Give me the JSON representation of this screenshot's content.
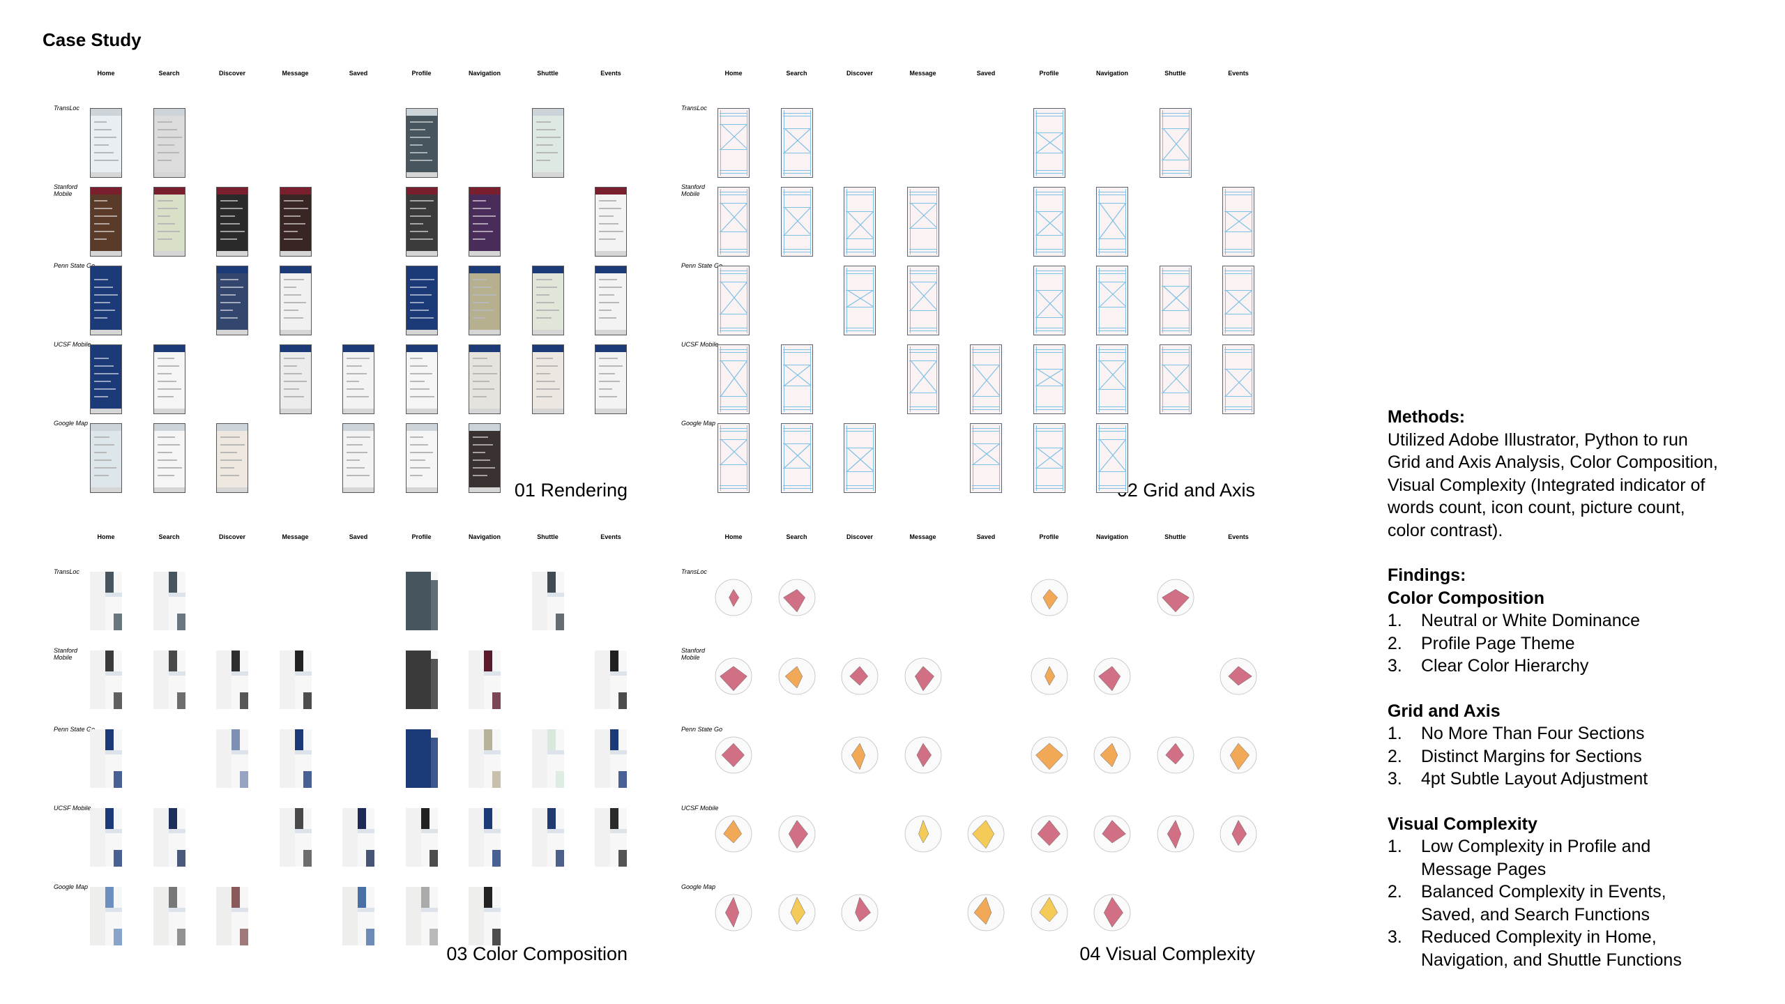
{
  "title": "Case Study",
  "columns": [
    "Home",
    "Search",
    "Discover",
    "Message",
    "Saved",
    "Profile",
    "Navigation",
    "Shuttle",
    "Events"
  ],
  "rows": [
    "TransLoc",
    "Stanford Mobile",
    "Penn State Go",
    "UCSF Mobile",
    "Google Map"
  ],
  "panels": [
    {
      "caption": "01 Rendering"
    },
    {
      "caption": "02 Grid and Axis"
    },
    {
      "caption": "03 Color Composition"
    },
    {
      "caption": "04 Visual Complexity"
    }
  ],
  "presence": [
    [
      1,
      1,
      0,
      0,
      0,
      1,
      0,
      1,
      0
    ],
    [
      1,
      1,
      1,
      1,
      0,
      1,
      1,
      0,
      1
    ],
    [
      1,
      0,
      1,
      1,
      0,
      1,
      1,
      1,
      1
    ],
    [
      1,
      1,
      0,
      1,
      1,
      1,
      1,
      1,
      1
    ],
    [
      1,
      1,
      1,
      0,
      1,
      1,
      1,
      0,
      0
    ]
  ],
  "colors": {
    "navy": "#1c3a78",
    "slate": "#46555e",
    "maroon": "#5b1a2b",
    "grid_line": "#7fc0e6",
    "radar_rose": "#c9566e",
    "radar_orange": "#ee9a3a",
    "radar_yellow": "#f2c23c"
  },
  "methods": {
    "heading": "Methods:",
    "lines": [
      "Utilized Adobe Illustrator, Python to run",
      "Grid and Axis Analysis, Color Composition,",
      "Visual Complexity (Integrated indicator of",
      "words count, icon count, picture count,",
      "color contrast)."
    ]
  },
  "findings": {
    "heading": "Findings:",
    "groups": [
      {
        "title": "Color Composition",
        "items": [
          {
            "n": "1.",
            "lines": [
              "Neutral or White Dominance"
            ]
          },
          {
            "n": "2.",
            "lines": [
              "Profile Page Theme"
            ]
          },
          {
            "n": "3.",
            "lines": [
              "Clear Color Hierarchy"
            ]
          }
        ]
      },
      {
        "title": "Grid and Axis",
        "items": [
          {
            "n": "1.",
            "lines": [
              "No More Than Four Sections"
            ]
          },
          {
            "n": "2.",
            "lines": [
              "Distinct Margins for Sections"
            ]
          },
          {
            "n": "3.",
            "lines": [
              "4pt Subtle Layout Adjustment"
            ]
          }
        ]
      },
      {
        "title": "Visual Complexity",
        "items": [
          {
            "n": "1.",
            "lines": [
              "Low Complexity in Profile and",
              "Message Pages"
            ]
          },
          {
            "n": "2.",
            "lines": [
              "Balanced Complexity in Events,",
              "Saved, and Search Functions"
            ]
          },
          {
            "n": "3.",
            "lines": [
              "Reduced Complexity in Home,",
              "Navigation, and Shuttle Functions"
            ]
          }
        ]
      }
    ]
  }
}
